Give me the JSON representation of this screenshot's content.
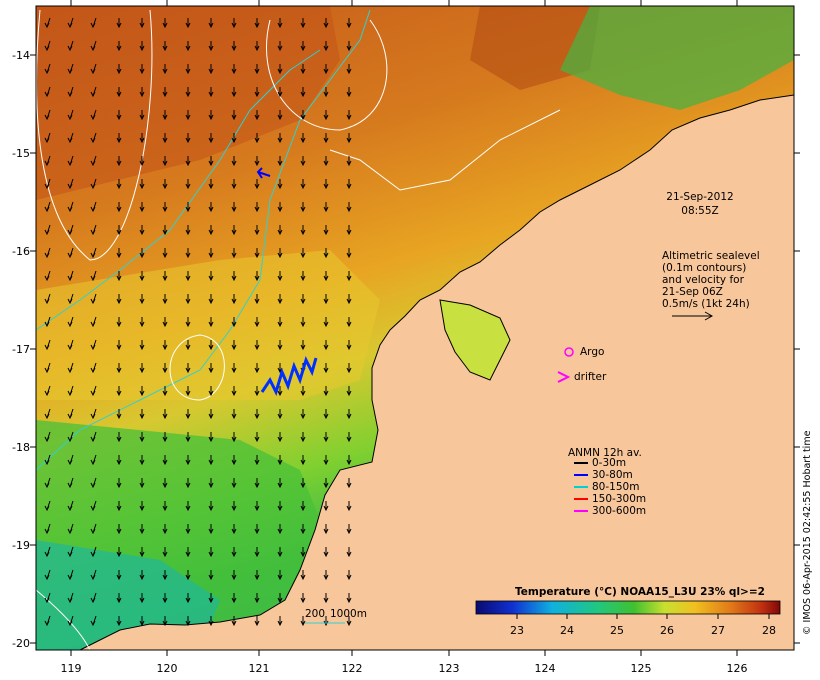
{
  "map": {
    "lon_ticks": [
      "119",
      "120",
      "121",
      "122",
      "123",
      "124",
      "125",
      "126"
    ],
    "lat_ticks": [
      "-14",
      "-15",
      "-16",
      "-17",
      "-18",
      "-19",
      "-20"
    ],
    "datetime": {
      "date": "21-Sep-2012",
      "time": "08:55Z"
    },
    "altimetry_note": [
      "Altimetric sealevel",
      "(0.1m contours)",
      "and velocity for",
      "21-Sep 06Z",
      "0.5m/s (1kt 24h)"
    ],
    "argo_label": "Argo",
    "drifter_label": "drifter",
    "anmn_legend": {
      "title": "ANMN 12h av.",
      "items": [
        {
          "label": "0-30m",
          "color": "#000000"
        },
        {
          "label": "30-80m",
          "color": "#0000ff"
        },
        {
          "label": "80-150m",
          "color": "#00d0d0"
        },
        {
          "label": "150-300m",
          "color": "#ff0000"
        },
        {
          "label": "300-600m",
          "color": "#ff00ff"
        }
      ]
    },
    "bathy_label": {
      "left": "200",
      "right": "1000m"
    },
    "colorbar": {
      "title": "Temperature (°C) NOAA15_L3U 23% ql>=2",
      "ticks": [
        "23",
        "24",
        "25",
        "26",
        "27",
        "28"
      ]
    },
    "credit": "© IMOS 06-Apr-2015 02:42:55 Hobart time",
    "colors": {
      "land": "#f8c69b",
      "warm": "#c4621c",
      "mid": "#e09a20",
      "cool": "#30c040",
      "argo": "#ff00ff"
    }
  }
}
